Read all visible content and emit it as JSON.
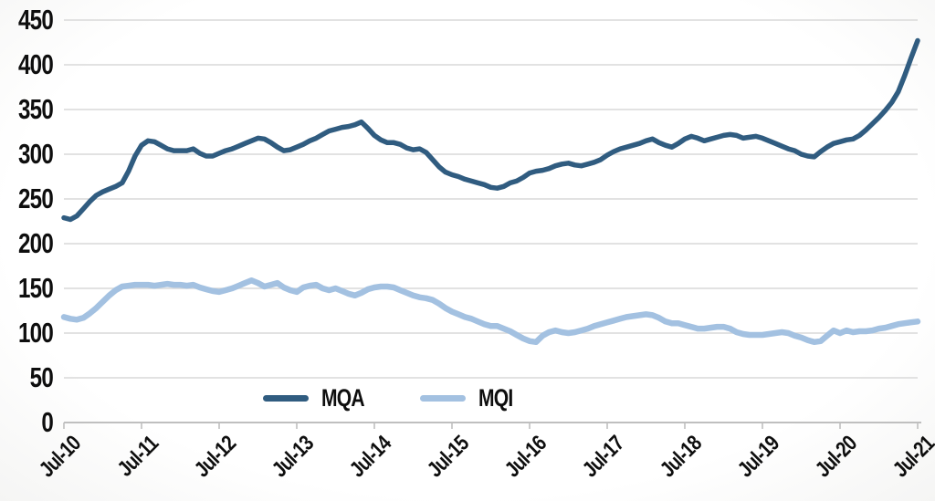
{
  "chart_data": {
    "type": "line",
    "title": "",
    "xlabel": "",
    "ylabel": "",
    "x_tick_labels": [
      "Jul-10",
      "Jul-11",
      "Jul-12",
      "Jul-13",
      "Jul-14",
      "Jul-15",
      "Jul-16",
      "Jul-17",
      "Jul-18",
      "Jul-19",
      "Jul-20",
      "Jul-21"
    ],
    "y_ticks": [
      0,
      50,
      100,
      150,
      200,
      250,
      300,
      350,
      400,
      450
    ],
    "ylim": [
      0,
      450
    ],
    "x_frequency": "monthly",
    "x_range": "Jul-2010 to Jul-2021",
    "grid": true,
    "legend_position": "bottom-center",
    "series": [
      {
        "name": "MQA",
        "color": "#305C80",
        "values": [
          229,
          227,
          231,
          239,
          247,
          254,
          258,
          261,
          264,
          268,
          281,
          298,
          310,
          315,
          314,
          310,
          306,
          304,
          304,
          304,
          306,
          301,
          298,
          298,
          301,
          304,
          306,
          309,
          312,
          315,
          318,
          317,
          313,
          308,
          304,
          305,
          308,
          311,
          315,
          318,
          322,
          326,
          328,
          330,
          331,
          333,
          336,
          329,
          321,
          316,
          313,
          313,
          311,
          307,
          305,
          306,
          302,
          294,
          286,
          280,
          277,
          275,
          272,
          270,
          268,
          266,
          263,
          262,
          264,
          268,
          270,
          274,
          279,
          281,
          282,
          284,
          287,
          289,
          290,
          288,
          287,
          289,
          291,
          294,
          299,
          303,
          306,
          308,
          310,
          312,
          315,
          317,
          313,
          310,
          308,
          312,
          317,
          320,
          318,
          315,
          317,
          319,
          321,
          322,
          321,
          318,
          319,
          320,
          318,
          315,
          312,
          309,
          306,
          304,
          300,
          298,
          297,
          303,
          308,
          312,
          314,
          316,
          317,
          321,
          327,
          334,
          341,
          349,
          358,
          370,
          388,
          408,
          427
        ]
      },
      {
        "name": "MQI",
        "color": "#A3C1E1",
        "values": [
          118,
          116,
          115,
          117,
          122,
          128,
          135,
          142,
          148,
          152,
          153,
          154,
          154,
          154,
          153,
          154,
          155,
          154,
          154,
          153,
          154,
          151,
          149,
          147,
          146,
          148,
          150,
          153,
          156,
          159,
          156,
          152,
          154,
          156,
          151,
          148,
          146,
          151,
          153,
          154,
          150,
          148,
          150,
          147,
          144,
          142,
          145,
          149,
          151,
          152,
          152,
          151,
          148,
          145,
          142,
          140,
          139,
          137,
          133,
          128,
          124,
          121,
          118,
          116,
          113,
          110,
          108,
          108,
          105,
          102,
          98,
          94,
          91,
          90,
          97,
          101,
          103,
          101,
          100,
          101,
          103,
          105,
          108,
          110,
          112,
          114,
          116,
          118,
          119,
          120,
          121,
          120,
          117,
          113,
          111,
          111,
          109,
          107,
          105,
          105,
          106,
          107,
          107,
          105,
          101,
          99,
          98,
          98,
          98,
          99,
          100,
          101,
          100,
          97,
          95,
          92,
          90,
          91,
          97,
          103,
          100,
          103,
          101,
          102,
          102,
          103,
          105,
          106,
          108,
          110,
          111,
          112,
          113
        ]
      }
    ]
  },
  "colors": {
    "grid": "#D9D9D9",
    "axis": "#BFBFBF",
    "text": "#0E0E0E",
    "background": "#FFFFFF"
  }
}
